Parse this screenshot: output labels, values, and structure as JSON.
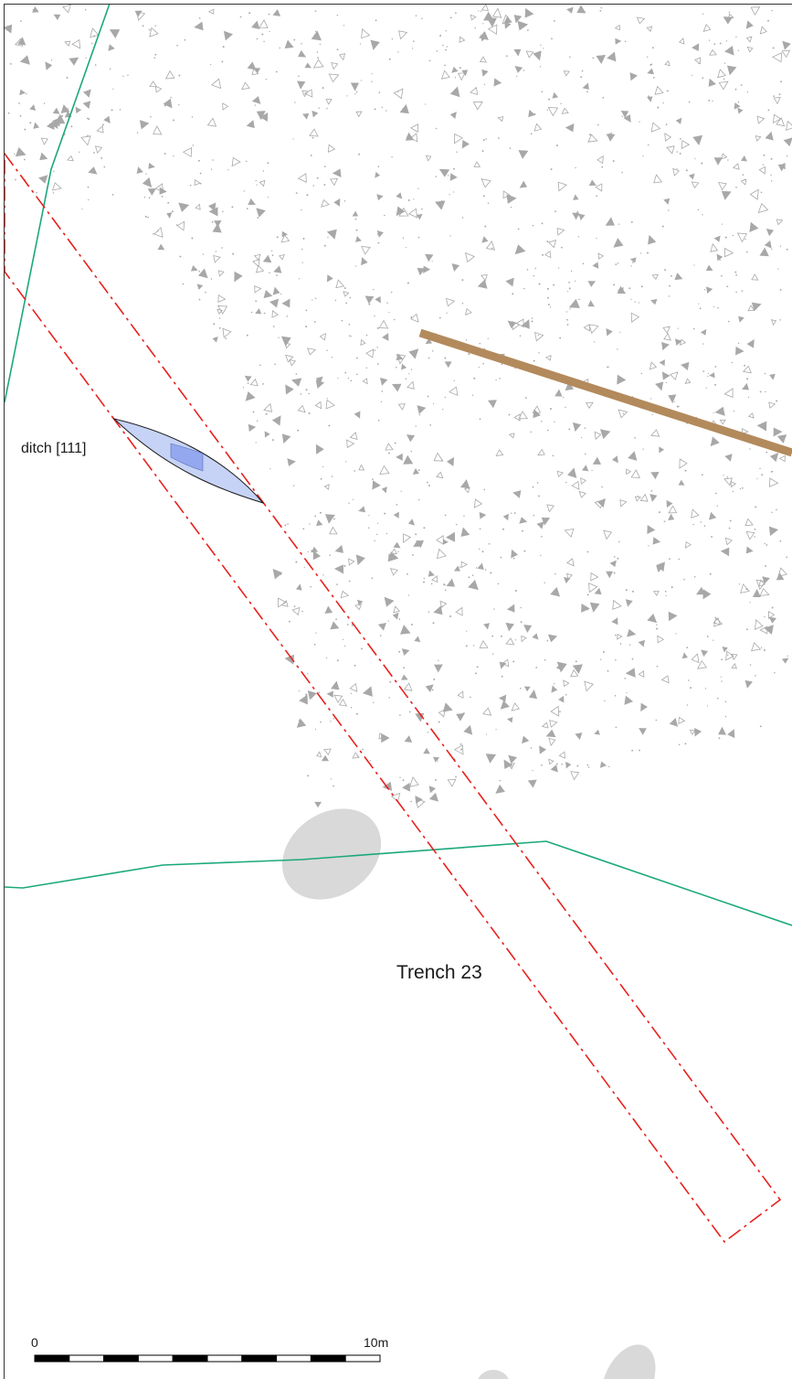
{
  "plan": {
    "trench_label": "Trench 23",
    "feature_label": "ditch [111]"
  },
  "scale_bar": {
    "start_label": "0",
    "end_label": "10m",
    "segments": 10
  },
  "colors": {
    "trench_outline": "#e8201c",
    "contour_line": "#1aa87c",
    "linear_feature": "#b38a5c",
    "ditch_fill": "#c6d3f6",
    "ditch_section": "#93a8ef",
    "grey_patch": "#d9d9d9",
    "hachure_marks": "#a8a8a8",
    "frame": "#333333"
  },
  "icons": {
    "stipple_area": "triangle-stipple-hachure"
  }
}
